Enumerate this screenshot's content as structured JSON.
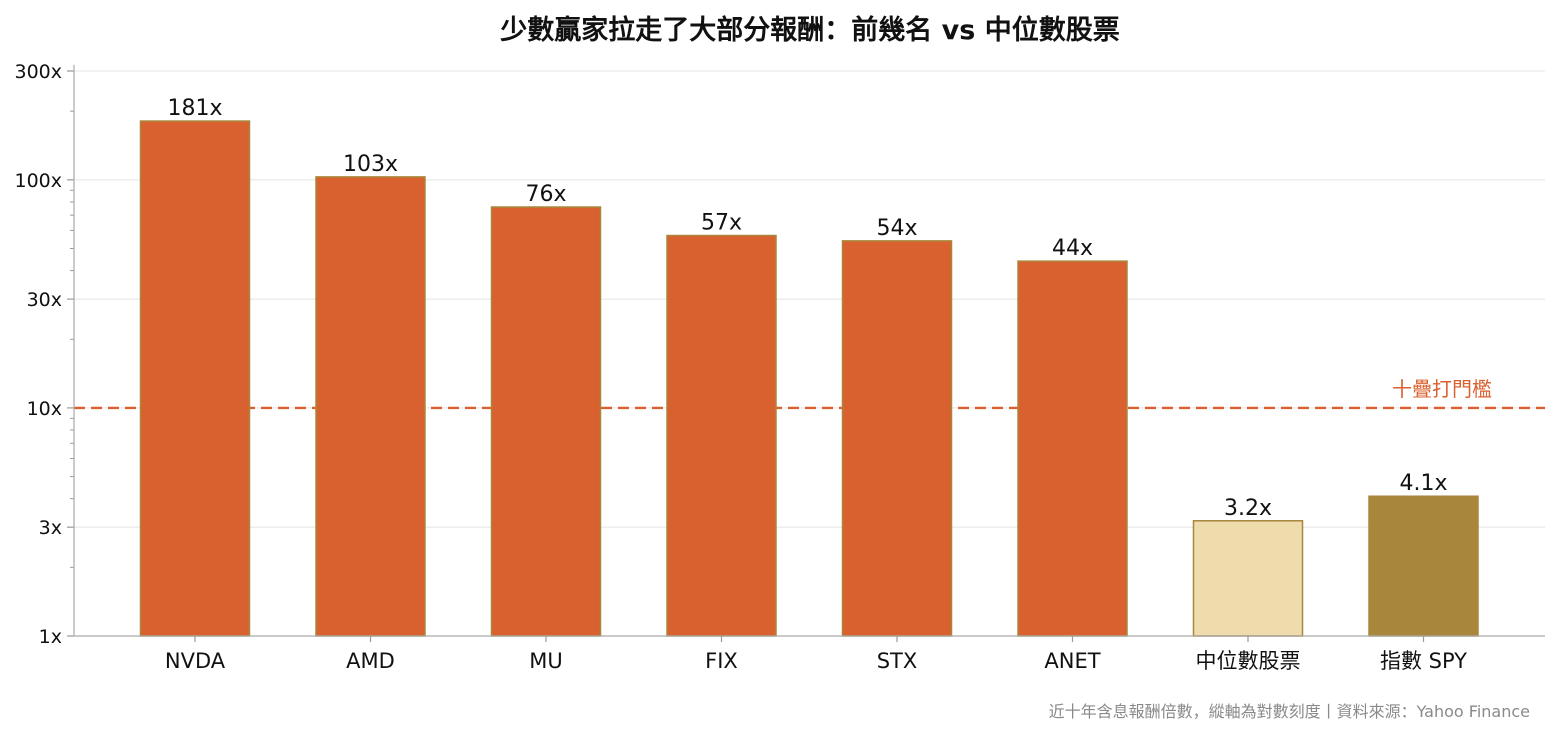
{
  "chart_data": {
    "type": "bar",
    "title": "少數贏家拉走了大部分報酬：前幾名 vs 中位數股票",
    "categories": [
      "NVDA",
      "AMD",
      "MU",
      "FIX",
      "STX",
      "ANET",
      "中位數股票",
      "指數 SPY"
    ],
    "values": [
      181,
      103,
      76,
      57,
      54,
      44,
      3.2,
      4.1
    ],
    "data_labels": [
      "181x",
      "103x",
      "76x",
      "57x",
      "54x",
      "44x",
      "3.2x",
      "4.1x"
    ],
    "bar_colors": [
      "#d9612f",
      "#d9612f",
      "#d9612f",
      "#d9612f",
      "#d9612f",
      "#d9612f",
      "#eedcad",
      "#a8873c"
    ],
    "bar_edge_color": "#a8873c",
    "y_scale": "log",
    "ylim": [
      1,
      300
    ],
    "y_ticks": [
      1,
      3,
      10,
      30,
      100,
      300
    ],
    "y_tick_labels": [
      "1x",
      "3x",
      "10x",
      "30x",
      "100x",
      "300x"
    ],
    "grid": true,
    "threshold": {
      "value": 10,
      "label": "十疊打門檻",
      "color": "#d9612f"
    },
    "footnote": "近十年含息報酬倍數，縱軸為對數刻度丨資料來源：Yahoo Finance"
  }
}
